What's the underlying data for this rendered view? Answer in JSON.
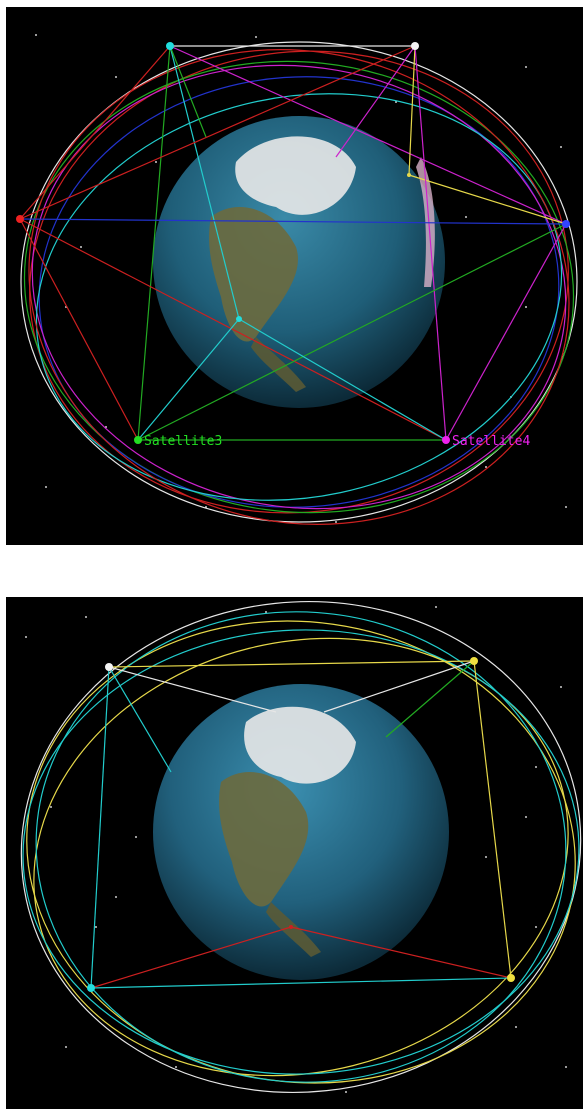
{
  "panels": [
    {
      "id": "top",
      "satellite_labels": [
        {
          "text": "Satellite3",
          "color": "#22dd22"
        },
        {
          "text": "Satellite4",
          "color": "#ee22ee"
        }
      ]
    },
    {
      "id": "bottom",
      "satellite_labels": []
    }
  ],
  "colors": {
    "background": "#000000",
    "ocean": "#2b6f8f",
    "ice": "#e8e8e8",
    "land": "#6b6a3e",
    "orbit_white": "#e6e6e6",
    "orbit_red": "#cc2020",
    "orbit_green": "#22aa22",
    "orbit_blue": "#2233cc",
    "orbit_magenta": "#cc22cc",
    "orbit_cyan": "#22cccc",
    "orbit_yellow": "#e6d84a"
  }
}
